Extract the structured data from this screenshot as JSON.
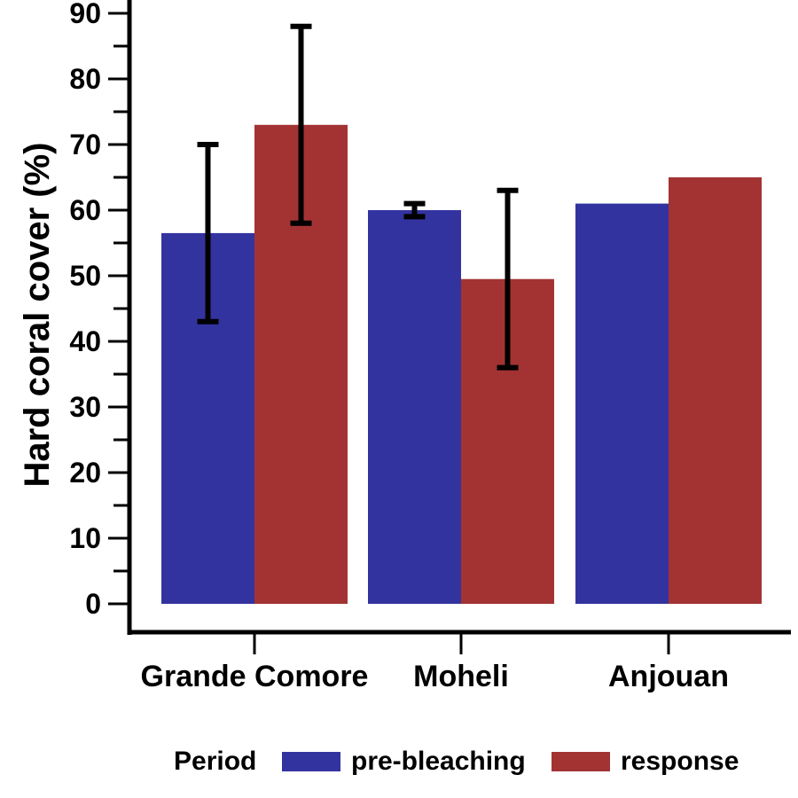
{
  "chart_data": {
    "type": "bar",
    "title": "",
    "xlabel": "",
    "ylabel": "Hard coral cover (%)",
    "categories": [
      "Grande Comore",
      "Moheli",
      "Anjouan"
    ],
    "series": [
      {
        "name": "pre-bleaching",
        "color": "#3333a0",
        "values": [
          56.5,
          60,
          61
        ],
        "error": [
          [
            43,
            70
          ],
          [
            59,
            61
          ],
          null
        ]
      },
      {
        "name": "response",
        "color": "#a33333",
        "values": [
          73,
          49.5,
          65
        ],
        "error": [
          [
            58,
            88
          ],
          [
            36,
            63
          ],
          null
        ]
      }
    ],
    "ylim": [
      0,
      90
    ],
    "yticks": [
      0,
      10,
      20,
      30,
      40,
      50,
      60,
      70,
      80,
      90
    ],
    "legend": {
      "title": "Period",
      "position": "bottom"
    },
    "grid": false
  }
}
